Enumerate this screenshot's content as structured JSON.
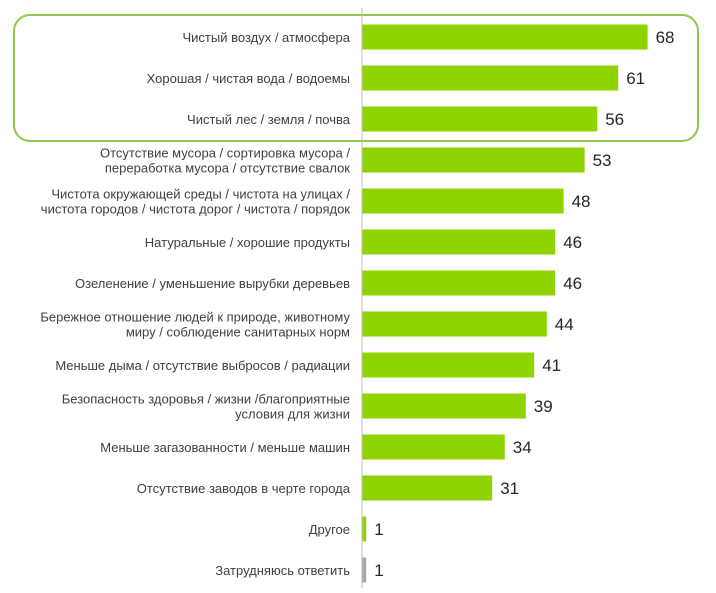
{
  "chart_data": {
    "type": "bar",
    "orientation": "horizontal",
    "categories": [
      [
        "Чистый воздух / атмосфера"
      ],
      [
        "Хорошая / чистая вода / водоемы"
      ],
      [
        "Чистый лес / земля / почва"
      ],
      [
        "Отсутствие мусора / сортировка мусора /",
        "переработка мусора / отсутствие свалок"
      ],
      [
        "Чистота окружающей среды / чистота на улицах /",
        "чистота городов / чистота дорог / чистота / порядок"
      ],
      [
        "Натуральные / хорошие продукты"
      ],
      [
        "Озеленение / уменьшение вырубки деревьев"
      ],
      [
        "Бережное отношение людей к природе, животному",
        "миру / соблюдение санитарных норм"
      ],
      [
        "Меньше дыма / отсутствие выбросов / радиации"
      ],
      [
        "Безопасность здоровья / жизни /благоприятные",
        "условия для жизни"
      ],
      [
        "Меньше загазованности / меньше машин"
      ],
      [
        "Отсутствие заводов в черте города"
      ],
      [
        "Другое"
      ],
      [
        "Затрудняюсь ответить"
      ]
    ],
    "values": [
      68,
      61,
      56,
      53,
      48,
      46,
      46,
      44,
      41,
      39,
      34,
      31,
      1,
      1
    ],
    "value_labels": [
      "68",
      "61",
      "56",
      "53",
      "48",
      "46",
      "46",
      "44",
      "41",
      "39",
      "34",
      "31",
      "1",
      "1"
    ],
    "bar_colors": [
      "#8fd400",
      "#8fd400",
      "#8fd400",
      "#8fd400",
      "#8fd400",
      "#8fd400",
      "#8fd400",
      "#8fd400",
      "#8fd400",
      "#8fd400",
      "#8fd400",
      "#8fd400",
      "#8fd400",
      "#a6a6a6"
    ],
    "highlight": {
      "from_index": 0,
      "to_index": 2,
      "color": "#8fc74a"
    },
    "axis_color": "#bfbfbf",
    "xlim": [
      0,
      70
    ],
    "grid": false,
    "legend": "none"
  }
}
